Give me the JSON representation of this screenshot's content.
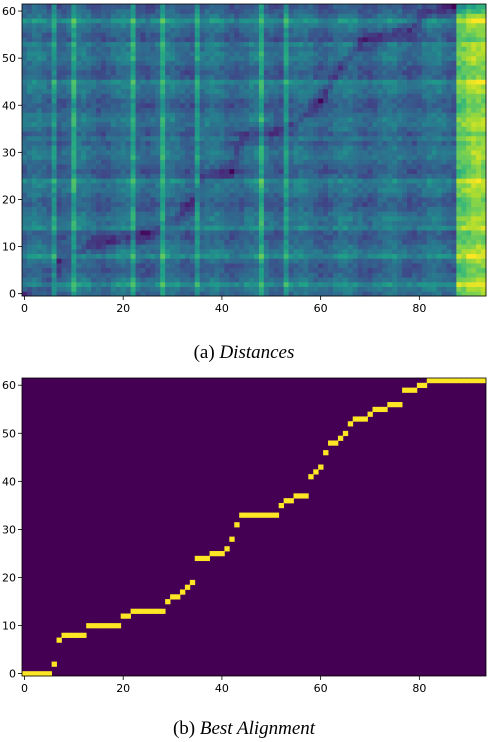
{
  "chart_data": [
    {
      "type": "heatmap",
      "caption_prefix": "(a)",
      "caption_title": "Distances",
      "xlim": [
        0,
        94
      ],
      "ylim": [
        0,
        62
      ],
      "xticks": [
        0,
        20,
        40,
        60,
        80
      ],
      "yticks": [
        0,
        10,
        20,
        30,
        40,
        50,
        60
      ],
      "colormap": "viridis",
      "bright_columns": [
        6,
        10,
        22,
        28,
        35,
        48,
        53,
        88,
        89,
        90,
        91,
        92,
        93
      ],
      "bright_rows": [
        2,
        8,
        14,
        24,
        33,
        45,
        53,
        58
      ],
      "dark_valley_path": [
        [
          0,
          0
        ],
        [
          6,
          2
        ],
        [
          7,
          7
        ],
        [
          13,
          10
        ],
        [
          21,
          12
        ],
        [
          30,
          15
        ],
        [
          34,
          19
        ],
        [
          36,
          24
        ],
        [
          42,
          26
        ],
        [
          44,
          33
        ],
        [
          52,
          35
        ],
        [
          56,
          37
        ],
        [
          60,
          41
        ],
        [
          64,
          48
        ],
        [
          68,
          53
        ],
        [
          74,
          55
        ],
        [
          78,
          56
        ],
        [
          82,
          60
        ],
        [
          88,
          61
        ]
      ]
    },
    {
      "type": "heatmap",
      "caption_prefix": "(b)",
      "caption_title": "Best Alignment",
      "xlim": [
        0,
        94
      ],
      "ylim": [
        0,
        62
      ],
      "xticks": [
        0,
        20,
        40,
        60,
        80
      ],
      "yticks": [
        0,
        10,
        20,
        30,
        40,
        50,
        60
      ],
      "colors": {
        "background": "#440154",
        "path": "#fde725"
      },
      "path": [
        [
          0,
          0
        ],
        [
          1,
          0
        ],
        [
          2,
          0
        ],
        [
          3,
          0
        ],
        [
          4,
          0
        ],
        [
          5,
          0
        ],
        [
          6,
          2
        ],
        [
          7,
          7
        ],
        [
          8,
          8
        ],
        [
          9,
          8
        ],
        [
          10,
          8
        ],
        [
          11,
          8
        ],
        [
          12,
          8
        ],
        [
          13,
          10
        ],
        [
          14,
          10
        ],
        [
          15,
          10
        ],
        [
          16,
          10
        ],
        [
          17,
          10
        ],
        [
          18,
          10
        ],
        [
          19,
          10
        ],
        [
          20,
          12
        ],
        [
          21,
          12
        ],
        [
          22,
          13
        ],
        [
          23,
          13
        ],
        [
          24,
          13
        ],
        [
          25,
          13
        ],
        [
          26,
          13
        ],
        [
          27,
          13
        ],
        [
          28,
          13
        ],
        [
          29,
          15
        ],
        [
          30,
          16
        ],
        [
          31,
          16
        ],
        [
          32,
          17
        ],
        [
          33,
          18
        ],
        [
          34,
          19
        ],
        [
          35,
          24
        ],
        [
          36,
          24
        ],
        [
          37,
          24
        ],
        [
          38,
          25
        ],
        [
          39,
          25
        ],
        [
          40,
          25
        ],
        [
          41,
          26
        ],
        [
          42,
          28
        ],
        [
          43,
          31
        ],
        [
          44,
          33
        ],
        [
          45,
          33
        ],
        [
          46,
          33
        ],
        [
          47,
          33
        ],
        [
          48,
          33
        ],
        [
          49,
          33
        ],
        [
          50,
          33
        ],
        [
          51,
          33
        ],
        [
          52,
          35
        ],
        [
          53,
          36
        ],
        [
          54,
          36
        ],
        [
          55,
          37
        ],
        [
          56,
          37
        ],
        [
          57,
          37
        ],
        [
          58,
          41
        ],
        [
          59,
          42
        ],
        [
          60,
          43
        ],
        [
          61,
          46
        ],
        [
          62,
          48
        ],
        [
          63,
          48
        ],
        [
          64,
          49
        ],
        [
          65,
          50
        ],
        [
          66,
          52
        ],
        [
          67,
          53
        ],
        [
          68,
          53
        ],
        [
          69,
          53
        ],
        [
          70,
          54
        ],
        [
          71,
          55
        ],
        [
          72,
          55
        ],
        [
          73,
          55
        ],
        [
          74,
          56
        ],
        [
          75,
          56
        ],
        [
          76,
          56
        ],
        [
          77,
          59
        ],
        [
          78,
          59
        ],
        [
          79,
          59
        ],
        [
          80,
          60
        ],
        [
          81,
          60
        ],
        [
          82,
          61
        ],
        [
          83,
          61
        ],
        [
          84,
          61
        ],
        [
          85,
          61
        ],
        [
          86,
          61
        ],
        [
          87,
          61
        ],
        [
          88,
          61
        ],
        [
          89,
          61
        ],
        [
          90,
          61
        ],
        [
          91,
          61
        ],
        [
          92,
          61
        ],
        [
          93,
          61
        ]
      ]
    }
  ]
}
